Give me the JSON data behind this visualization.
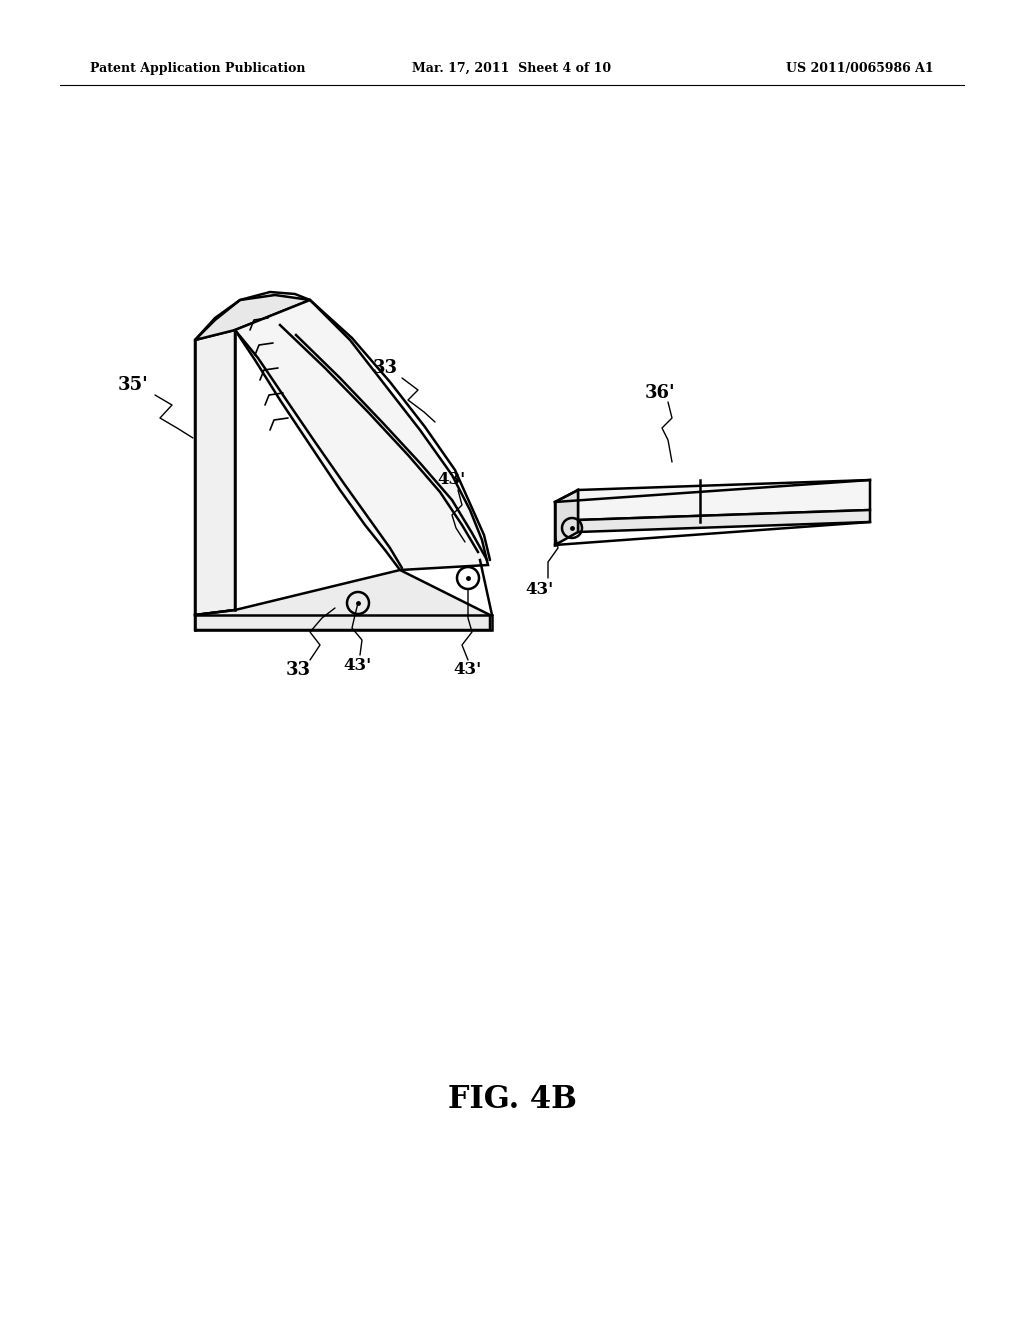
{
  "background_color": "#ffffff",
  "header_left": "Patent Application Publication",
  "header_mid": "Mar. 17, 2011  Sheet 4 of 10",
  "header_right": "US 2011/0065986 A1",
  "fig_label": "FIG. 4B"
}
